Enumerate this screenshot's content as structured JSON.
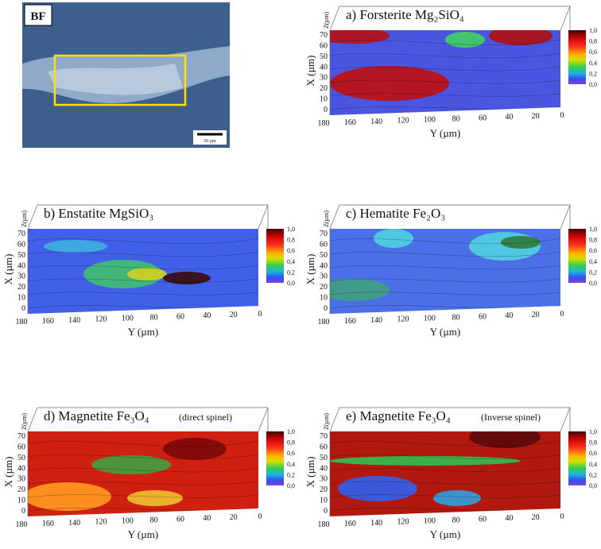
{
  "micrograph": {
    "label": "BF",
    "scale_bar": "50 µm"
  },
  "axes": {
    "x_label": "X (µm)",
    "y_label": "Y (µm)",
    "z_label": "Z(µm)",
    "x_ticks": [
      0,
      10,
      20,
      30,
      40,
      50,
      60,
      70
    ],
    "y_ticks": [
      180,
      160,
      140,
      120,
      100,
      80,
      60,
      40,
      20,
      0
    ],
    "colorbar_ticks": [
      "1,0",
      "0,8",
      "0,6",
      "0,4",
      "0,2",
      "0,0"
    ]
  },
  "panels": [
    {
      "title": "a) Forsterite Mg₂SiO₄"
    },
    {
      "title": "b) Enstatite MgSiO₃"
    },
    {
      "title": "c) Hematite Fe₂O₃"
    },
    {
      "title": "d) Magnetite Fe₃O₄",
      "note": "(direct spinel)"
    },
    {
      "title": "e) Magnetite Fe₃O₄",
      "note": "(Inverse spinel)"
    }
  ]
}
